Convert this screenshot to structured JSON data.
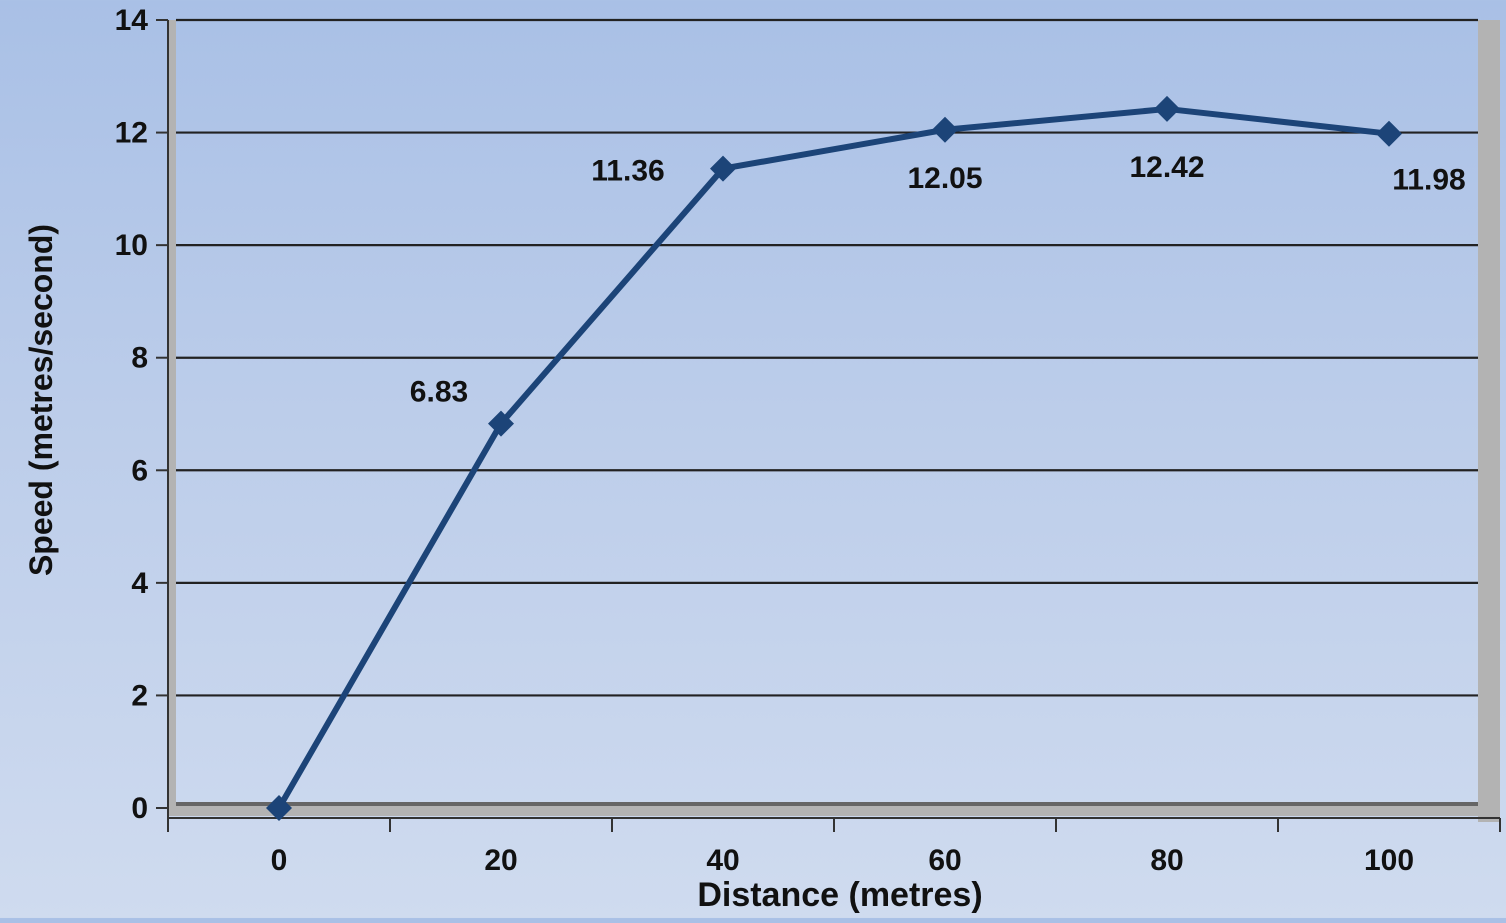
{
  "chart_data": {
    "type": "line",
    "title": "",
    "xlabel": "Distance (metres)",
    "ylabel": "Speed (metres/second)",
    "x": [
      0,
      20,
      40,
      60,
      80,
      100
    ],
    "series": [
      {
        "values": [
          0,
          6.83,
          11.36,
          12.05,
          12.42,
          11.98
        ]
      }
    ],
    "data_labels": [
      "",
      "6.83",
      "11.36",
      "12.05",
      "12.42",
      "11.98"
    ],
    "xlim": [
      -10,
      110
    ],
    "ylim": [
      0,
      14
    ],
    "x_ticks": [
      "0",
      "20",
      "40",
      "60",
      "80",
      "100"
    ],
    "y_ticks": [
      "0",
      "2",
      "4",
      "6",
      "8",
      "10",
      "12",
      "14"
    ],
    "grid": "horizontal",
    "legend": "none",
    "colors": {
      "line": "#1c4478",
      "grid": "#222222",
      "axis": "#333333",
      "wall": "#b3b3b3"
    }
  }
}
